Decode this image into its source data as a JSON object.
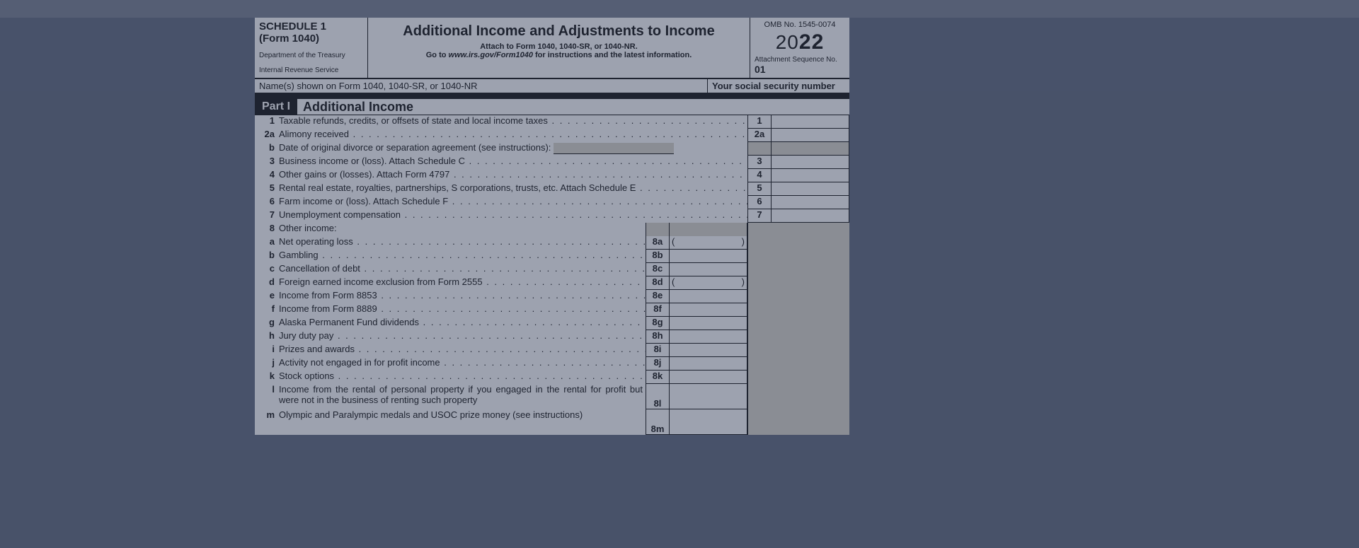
{
  "header": {
    "schedule": "SCHEDULE 1",
    "form": "(Form 1040)",
    "dept1": "Department of the Treasury",
    "dept2": "Internal Revenue Service",
    "title": "Additional Income and Adjustments to Income",
    "attach": "Attach to Form 1040, 1040-SR, or 1040-NR.",
    "goto_pre": "Go to ",
    "goto_url": "www.irs.gov/Form1040",
    "goto_post": " for instructions and the latest information.",
    "omb": "OMB No. 1545-0074",
    "year_light": "20",
    "year_bold": "22",
    "seq_label": "Attachment\nSequence No.",
    "seq_no": "01"
  },
  "namerow": {
    "name_label": "Name(s) shown on Form 1040, 1040-SR, or 1040-NR",
    "ssn_label": "Your social security number"
  },
  "part1": {
    "label": "Part I",
    "title": "Additional Income"
  },
  "lines": {
    "l1": {
      "n": "1",
      "t": "Taxable refunds, credits, or offsets of state and local income taxes",
      "box": "1"
    },
    "l2a": {
      "n": "2a",
      "t": "Alimony received",
      "box": "2a"
    },
    "l2b": {
      "n": "b",
      "t": "Date of original divorce or separation agreement (see instructions):"
    },
    "l3": {
      "n": "3",
      "t": "Business income or (loss). Attach Schedule C",
      "box": "3"
    },
    "l4": {
      "n": "4",
      "t": "Other gains or (losses). Attach Form 4797",
      "box": "4"
    },
    "l5": {
      "n": "5",
      "t": "Rental real estate, royalties, partnerships, S corporations, trusts, etc. Attach Schedule E",
      "box": "5"
    },
    "l6": {
      "n": "6",
      "t": "Farm income or (loss). Attach Schedule F",
      "box": "6"
    },
    "l7": {
      "n": "7",
      "t": "Unemployment compensation",
      "box": "7"
    },
    "l8": {
      "n": "8",
      "t": "Other income:"
    },
    "l8a": {
      "n": "a",
      "t": "Net operating loss",
      "box": "8a"
    },
    "l8b": {
      "n": "b",
      "t": "Gambling",
      "box": "8b"
    },
    "l8c": {
      "n": "c",
      "t": "Cancellation of debt",
      "box": "8c"
    },
    "l8d": {
      "n": "d",
      "t": "Foreign earned income exclusion from Form 2555",
      "box": "8d"
    },
    "l8e": {
      "n": "e",
      "t": "Income from Form 8853",
      "box": "8e"
    },
    "l8f": {
      "n": "f",
      "t": "Income from Form 8889",
      "box": "8f"
    },
    "l8g": {
      "n": "g",
      "t": "Alaska Permanent Fund dividends",
      "box": "8g"
    },
    "l8h": {
      "n": "h",
      "t": "Jury duty pay",
      "box": "8h"
    },
    "l8i": {
      "n": "i",
      "t": "Prizes and awards",
      "box": "8i"
    },
    "l8j": {
      "n": "j",
      "t": "Activity not engaged in for profit income",
      "box": "8j"
    },
    "l8k": {
      "n": "k",
      "t": "Stock options",
      "box": "8k"
    },
    "l8l": {
      "n": "l",
      "t": "Income from the rental of personal property if you engaged in the rental for profit but were not in the business of renting such property",
      "box": "8l"
    },
    "l8m": {
      "n": "m",
      "t": "Olympic and Paralympic medals and USOC prize money (see instructions)",
      "box": "8m"
    }
  }
}
